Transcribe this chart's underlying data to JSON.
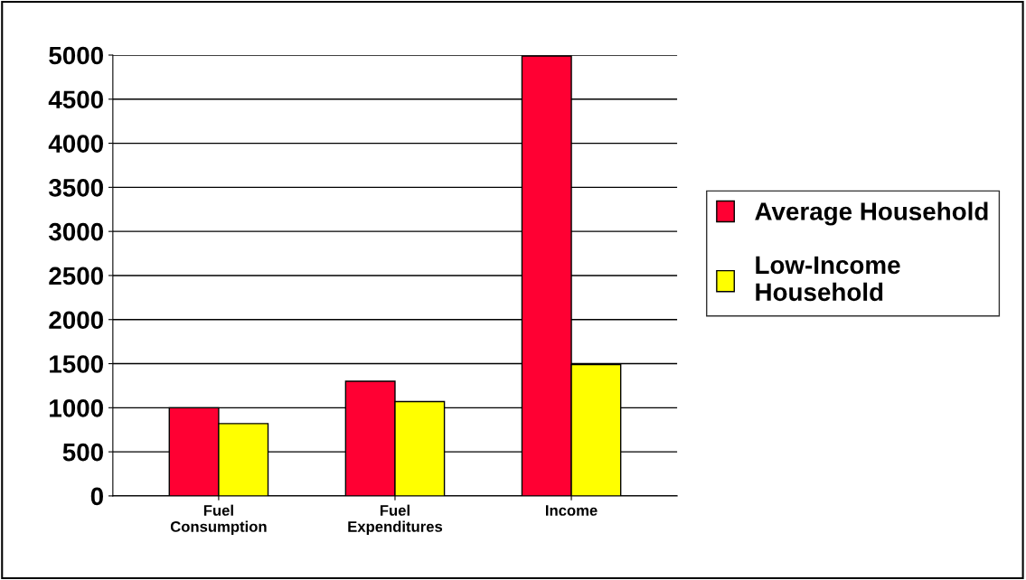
{
  "chart_data": {
    "type": "bar",
    "categories": [
      "Fuel\nConsumption",
      "Fuel\nExpenditures",
      "Income"
    ],
    "series": [
      {
        "name": "Average Household",
        "color": "#ff0033",
        "values": [
          1000,
          1300,
          4990
        ]
      },
      {
        "name": "Low-Income\nHousehold",
        "color": "#ffff00",
        "values": [
          820,
          1070,
          1490
        ]
      }
    ],
    "ylim": [
      0,
      5000
    ],
    "yticks": [
      0,
      500,
      1000,
      1500,
      2000,
      2500,
      3000,
      3500,
      4000,
      4500,
      5000
    ],
    "grid": "y",
    "legend": "right"
  }
}
